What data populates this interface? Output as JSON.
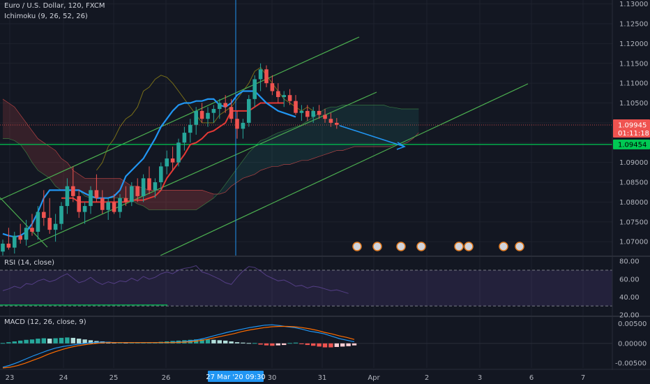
{
  "header": {
    "symbol": "Euro / U.S. Dollar, 120, FXCM",
    "indicator": "Ichimoku (9, 26, 52, 26)"
  },
  "price_axis": {
    "ticks": [
      "1.13000",
      "1.12500",
      "1.12000",
      "1.11500",
      "1.11000",
      "1.10500",
      "1.10000",
      "1.09500",
      "1.09000",
      "1.08500",
      "1.08000",
      "1.07500",
      "1.07000"
    ],
    "last_price": "1.09945",
    "countdown": "01:11:18",
    "level_label": "1.09454"
  },
  "time_axis": {
    "ticks": [
      "23",
      "24",
      "25",
      "26",
      "30",
      "31",
      "Apr",
      "2",
      "3",
      "6",
      "7"
    ],
    "crosshair_label": "27 Mar '20   09:30"
  },
  "rsi": {
    "title": "RSI (14, close)",
    "ticks": [
      "80.00",
      "60.00",
      "40.00",
      "20.00"
    ]
  },
  "macd": {
    "title": "MACD (12, 26, close, 9)",
    "ticks": [
      "0.00500",
      "0.00000",
      "-0.00500"
    ]
  },
  "colors": {
    "background": "#131722",
    "bull": "#26a69a",
    "bear": "#ef5350",
    "tenkan": "#2196f3",
    "kijun": "#e53935",
    "channel": "#4caf50",
    "level": "#00c853",
    "rsi_band": "#7e57c2"
  },
  "chart_data": [
    {
      "type": "candlestick",
      "title": "Euro / U.S. Dollar, 120, FXCM",
      "ylim": [
        1.0665,
        1.131
      ],
      "x_labels": [
        "23",
        "24",
        "25",
        "26",
        "30",
        "31",
        "Apr",
        "2",
        "3",
        "6",
        "7"
      ],
      "ohlc": [
        [
          1.0675,
          1.0705,
          1.0665,
          1.0695
        ],
        [
          1.0695,
          1.0735,
          1.068,
          1.0685
        ],
        [
          1.0685,
          1.0725,
          1.067,
          1.0715
        ],
        [
          1.0715,
          1.0745,
          1.0695,
          1.0705
        ],
        [
          1.0705,
          1.0755,
          1.069,
          1.0735
        ],
        [
          1.0735,
          1.077,
          1.0715,
          1.0725
        ],
        [
          1.0725,
          1.079,
          1.0705,
          1.0775
        ],
        [
          1.0775,
          1.083,
          1.074,
          1.076
        ],
        [
          1.076,
          1.081,
          1.072,
          1.073
        ],
        [
          1.073,
          1.077,
          1.07,
          1.0745
        ],
        [
          1.0745,
          1.08,
          1.073,
          1.079
        ],
        [
          1.079,
          1.086,
          1.077,
          1.084
        ],
        [
          1.084,
          1.089,
          1.08,
          1.0815
        ],
        [
          1.0815,
          1.083,
          1.076,
          1.0775
        ],
        [
          1.0775,
          1.08,
          1.0745,
          1.079
        ],
        [
          1.079,
          1.084,
          1.077,
          1.083
        ],
        [
          1.083,
          1.087,
          1.08,
          1.081
        ],
        [
          1.081,
          1.083,
          1.077,
          1.078
        ],
        [
          1.078,
          1.081,
          1.0755,
          1.08
        ],
        [
          1.08,
          1.082,
          1.077,
          1.0775
        ],
        [
          1.0775,
          1.082,
          1.076,
          1.081
        ],
        [
          1.081,
          1.084,
          1.079,
          1.08
        ],
        [
          1.08,
          1.085,
          1.079,
          1.084
        ],
        [
          1.084,
          1.086,
          1.08,
          1.0815
        ],
        [
          1.0815,
          1.087,
          1.08,
          1.086
        ],
        [
          1.086,
          1.089,
          1.082,
          1.083
        ],
        [
          1.083,
          1.086,
          1.081,
          1.085
        ],
        [
          1.085,
          1.09,
          1.083,
          1.089
        ],
        [
          1.089,
          1.093,
          1.087,
          1.091
        ],
        [
          1.091,
          1.094,
          1.088,
          1.09
        ],
        [
          1.09,
          1.096,
          1.089,
          1.095
        ],
        [
          1.095,
          1.099,
          1.093,
          1.0975
        ],
        [
          1.0975,
          1.101,
          1.095,
          1.0995
        ],
        [
          1.0995,
          1.104,
          1.097,
          1.103
        ],
        [
          1.103,
          1.105,
          1.1,
          1.101
        ],
        [
          1.101,
          1.104,
          1.099,
          1.1025
        ],
        [
          1.1025,
          1.1045,
          1.1,
          1.1035
        ],
        [
          1.1035,
          1.106,
          1.101,
          1.105
        ],
        [
          1.105,
          1.107,
          1.1025,
          1.104
        ],
        [
          1.104,
          1.106,
          1.1,
          1.101
        ],
        [
          1.101,
          1.103,
          1.096,
          1.0985
        ],
        [
          1.0985,
          1.101,
          1.096,
          1.1
        ],
        [
          1.1,
          1.107,
          1.099,
          1.106
        ],
        [
          1.106,
          1.112,
          1.104,
          1.111
        ],
        [
          1.111,
          1.115,
          1.108,
          1.1135
        ],
        [
          1.1135,
          1.1145,
          1.109,
          1.11
        ],
        [
          1.11,
          1.112,
          1.107,
          1.108
        ],
        [
          1.108,
          1.11,
          1.105,
          1.1065
        ],
        [
          1.1065,
          1.108,
          1.104,
          1.107
        ],
        [
          1.107,
          1.1085,
          1.1045,
          1.1055
        ],
        [
          1.1055,
          1.107,
          1.102,
          1.1025
        ],
        [
          1.1025,
          1.1045,
          1.1005,
          1.103
        ],
        [
          1.103,
          1.1045,
          1.1005,
          1.1015
        ],
        [
          1.1015,
          1.104,
          1.1,
          1.103
        ],
        [
          1.103,
          1.1045,
          1.101,
          1.102
        ],
        [
          1.102,
          1.1035,
          1.1,
          1.101
        ],
        [
          1.101,
          1.1025,
          1.099,
          1.1
        ],
        [
          1.1,
          1.1012,
          1.0985,
          1.0995
        ]
      ],
      "tenkan": [
        1.072,
        1.0715,
        1.0712,
        1.0715,
        1.0725,
        1.0745,
        1.0775,
        1.081,
        1.083,
        1.083,
        1.083,
        1.083,
        1.083,
        1.083,
        1.0822,
        1.0815,
        1.081,
        1.081,
        1.081,
        1.0815,
        1.083,
        1.0865,
        1.088,
        1.0895,
        1.091,
        1.0935,
        1.096,
        1.099,
        1.101,
        1.103,
        1.1045,
        1.105,
        1.105,
        1.1055,
        1.1055,
        1.106,
        1.106,
        1.1045,
        1.104,
        1.105,
        1.107,
        1.108,
        1.108,
        1.108,
        1.1065,
        1.105,
        1.104,
        1.103,
        1.1025,
        1.102,
        1.1015
      ],
      "kijun": [
        1.081,
        1.081,
        1.081,
        1.08,
        1.08,
        1.08,
        1.08,
        1.08,
        1.08,
        1.08,
        1.08,
        1.08,
        1.0805,
        1.0805,
        1.0805,
        1.081,
        1.0815,
        1.083,
        1.086,
        1.088,
        1.09,
        1.092,
        1.0945,
        1.095,
        1.096,
        1.0975,
        1.098,
        1.099,
        1.1,
        1.103,
        1.103,
        1.103,
        1.103,
        1.104,
        1.105,
        1.105,
        1.105,
        1.105,
        1.105
      ],
      "senkou_a": [
        1.096,
        1.096,
        1.0955,
        1.0945,
        1.0925,
        1.09,
        1.088,
        1.087,
        1.086,
        1.084,
        1.083,
        1.083,
        1.083,
        1.083,
        1.0815,
        1.081,
        1.081,
        1.081,
        1.081,
        1.081,
        1.081,
        1.081,
        1.0805,
        1.0795,
        1.079,
        1.078,
        1.078,
        1.078,
        1.078,
        1.078,
        1.078,
        1.078,
        1.078,
        1.078,
        1.079,
        1.08,
        1.081,
        1.0825,
        1.0845,
        1.0865,
        1.0885,
        1.0905,
        1.0925,
        1.094,
        1.0955,
        1.096,
        1.0968,
        1.0975,
        1.098,
        1.0985,
        1.099,
        1.0995,
        1.1005,
        1.1015,
        1.1025,
        1.1035,
        1.104,
        1.104,
        1.1045,
        1.1045,
        1.1045,
        1.1045,
        1.1045,
        1.1045,
        1.1045,
        1.1045,
        1.104,
        1.1038,
        1.1035,
        1.1035,
        1.1035,
        1.1035
      ],
      "senkou_b": [
        1.106,
        1.105,
        1.104,
        1.102,
        1.1,
        1.098,
        1.096,
        1.095,
        1.094,
        1.093,
        1.091,
        1.09,
        1.088,
        1.087,
        1.086,
        1.086,
        1.086,
        1.086,
        1.086,
        1.086,
        1.086,
        1.085,
        1.084,
        1.084,
        1.0835,
        1.083,
        1.083,
        1.083,
        1.083,
        1.083,
        1.083,
        1.083,
        1.083,
        1.083,
        1.083,
        1.0825,
        1.082,
        1.082,
        1.0825,
        1.084,
        1.085,
        1.086,
        1.0865,
        1.087,
        1.088,
        1.0885,
        1.089,
        1.089,
        1.0895,
        1.0895,
        1.09,
        1.0905,
        1.0905,
        1.091,
        1.0915,
        1.092,
        1.0925,
        1.093,
        1.093,
        1.0935,
        1.094,
        1.094,
        1.094,
        1.094,
        1.094,
        1.094,
        1.094,
        1.0945,
        1.0945,
        1.095,
        1.096,
        1.0975
      ],
      "chikou": [
        1.088,
        1.09,
        1.094,
        1.096,
        1.099,
        1.101,
        1.102,
        1.104,
        1.108,
        1.109,
        1.111,
        1.112,
        1.1115,
        1.11,
        1.108,
        1.106,
        1.104,
        1.102,
        1.1,
        1.1,
        1.1,
        1.102,
        1.103,
        1.104,
        1.106,
        1.108,
        1.11,
        1.113,
        1.114,
        1.112,
        1.11,
        1.108,
        1.106,
        1.105,
        1.104,
        1.103,
        1.104,
        1.103
      ],
      "channel_lower": [
        [
          1.069,
          1.1065
        ],
        [
          1.066,
          1.0995
        ]
      ],
      "channel_upper": [
        [
          1.0775,
          1.121
        ],
        [
          1.066,
          1.109
        ]
      ],
      "horizontal_level": 1.09454,
      "forecast_arrow": [
        1.0993,
        1.094
      ]
    },
    {
      "type": "line",
      "title": "RSI (14, close)",
      "ylim": [
        20,
        84
      ],
      "bands": [
        70,
        30
      ],
      "values": [
        47,
        49,
        52,
        50,
        55,
        54,
        58,
        60,
        57,
        59,
        63,
        66,
        61,
        56,
        58,
        62,
        57,
        54,
        57,
        55,
        58,
        57,
        61,
        58,
        63,
        60,
        62,
        66,
        68,
        66,
        70,
        72,
        73,
        75,
        68,
        66,
        63,
        60,
        56,
        54,
        62,
        69,
        74,
        73,
        69,
        64,
        61,
        58,
        59,
        56,
        52,
        53,
        50,
        52,
        51,
        49,
        47,
        48,
        46,
        44
      ]
    },
    {
      "type": "bar",
      "title": "MACD (12, 26, close, 9)",
      "ylim": [
        -0.0062,
        0.0065
      ],
      "histogram": [
        0.0001,
        0.0003,
        0.0005,
        0.0007,
        0.0009,
        0.001,
        0.0012,
        0.0013,
        0.0012,
        0.0013,
        0.0014,
        0.0015,
        0.0014,
        0.0012,
        0.001,
        0.0008,
        0.0006,
        0.0005,
        0.0004,
        0.0003,
        0.0003,
        0.0002,
        0.0002,
        0.0002,
        0.0002,
        0.0002,
        0.0003,
        0.0004,
        0.0005,
        0.0006,
        0.0007,
        0.0008,
        0.0009,
        0.001,
        0.001,
        0.001,
        0.0009,
        0.0008,
        0.0007,
        0.0005,
        0.0003,
        0.0002,
        0.0001,
        0.0001,
        -0.0003,
        -0.0005,
        -0.0006,
        -0.0005,
        -0.0004,
        0.0001,
        0.0002,
        -0.0002,
        -0.0004,
        -0.0006,
        -0.0008,
        -0.001,
        -0.001,
        -0.0009,
        -0.0008,
        -0.0007,
        -0.0005
      ],
      "macd_line": [
        -0.006,
        -0.0055,
        -0.0048,
        -0.004,
        -0.0032,
        -0.0025,
        -0.0018,
        -0.0012,
        -0.0008,
        -0.0005,
        -0.0002,
        0.0,
        0.0002,
        0.0003,
        0.0003,
        0.0002,
        0.0002,
        0.0002,
        0.0002,
        0.0002,
        0.0002,
        0.0002,
        0.0002,
        0.0003,
        0.0004,
        0.0006,
        0.0009,
        0.0013,
        0.0018,
        0.0023,
        0.0028,
        0.0032,
        0.0036,
        0.004,
        0.0043,
        0.0046,
        0.0047,
        0.0045,
        0.0042,
        0.004,
        0.0036,
        0.0031,
        0.0028,
        0.0024,
        0.0018,
        0.0012,
        0.0008,
        0.0004
      ],
      "signal_line": [
        -0.0062,
        -0.006,
        -0.0056,
        -0.005,
        -0.0043,
        -0.0036,
        -0.0028,
        -0.0021,
        -0.0015,
        -0.001,
        -0.0006,
        -0.0003,
        -0.0001,
        0.0001,
        0.0002,
        0.0002,
        0.0002,
        0.0002,
        0.0002,
        0.0002,
        0.0002,
        0.0002,
        0.0002,
        0.0002,
        0.0003,
        0.0004,
        0.0006,
        0.0009,
        0.0013,
        0.0017,
        0.0021,
        0.0025,
        0.003,
        0.0034,
        0.0037,
        0.004,
        0.0042,
        0.0043,
        0.0043,
        0.0042,
        0.004,
        0.0037,
        0.0033,
        0.0028,
        0.0024,
        0.0019,
        0.0015,
        0.001
      ]
    }
  ]
}
